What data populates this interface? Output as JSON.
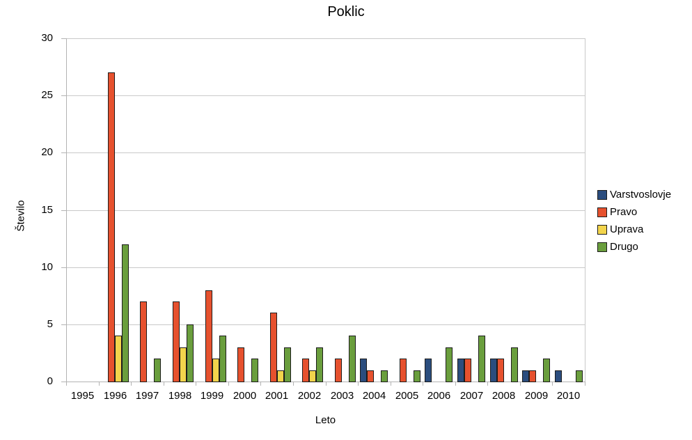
{
  "chart_data": {
    "type": "bar",
    "title": "Poklic",
    "xlabel": "Leto",
    "ylabel": "Število",
    "categories": [
      "1995",
      "1996",
      "1997",
      "1998",
      "1999",
      "2000",
      "2001",
      "2002",
      "2003",
      "2004",
      "2005",
      "2006",
      "2007",
      "2008",
      "2009",
      "2010"
    ],
    "series": [
      {
        "name": "Varstvoslovje",
        "color": "#2b4d7e",
        "values": [
          0,
          0,
          0,
          0,
          0,
          0,
          0,
          0,
          0,
          2,
          0,
          2,
          2,
          2,
          1,
          1
        ]
      },
      {
        "name": "Pravo",
        "color": "#e6512e",
        "values": [
          0,
          27,
          7,
          7,
          8,
          3,
          6,
          2,
          2,
          1,
          2,
          0,
          2,
          2,
          1,
          0
        ]
      },
      {
        "name": "Uprava",
        "color": "#f2d44c",
        "values": [
          0,
          4,
          0,
          3,
          2,
          0,
          1,
          1,
          0,
          0,
          0,
          0,
          0,
          0,
          0,
          0
        ]
      },
      {
        "name": "Drugo",
        "color": "#6a9e3d",
        "values": [
          0,
          12,
          2,
          5,
          4,
          2,
          3,
          3,
          4,
          1,
          1,
          3,
          4,
          3,
          2,
          1
        ]
      }
    ],
    "ylim": [
      0,
      30
    ],
    "yticks": [
      0,
      5,
      10,
      15,
      20,
      25,
      30
    ],
    "grid": true,
    "legend_position": "right",
    "styles": {
      "grid_color": "#c9c9c9",
      "axis_color": "#b3b3b3",
      "bar_border_color": "#1c1c1c",
      "text_color": "#000000",
      "background_color": "#ffffff"
    }
  }
}
